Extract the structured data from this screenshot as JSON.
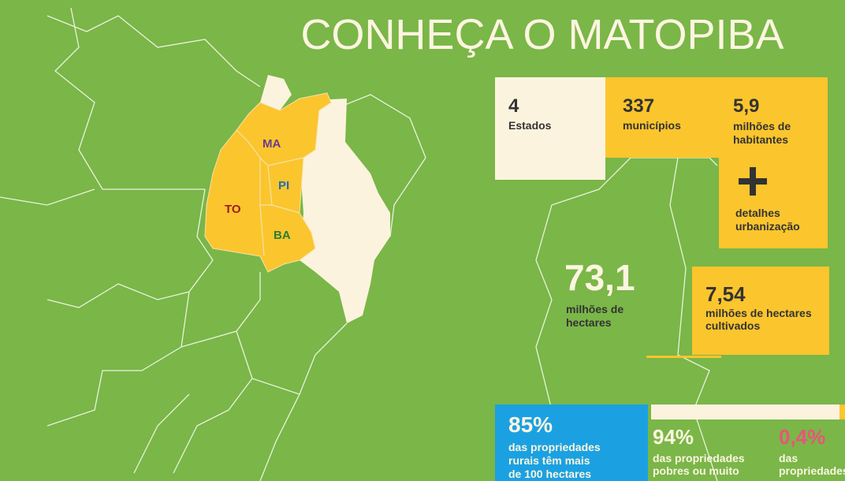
{
  "title": "CONHEÇA O MATOPIBA",
  "map": {
    "states": [
      "MA",
      "PI",
      "TO",
      "BA"
    ]
  },
  "stats": [
    {
      "value": "4",
      "lines": [
        "Estados"
      ]
    },
    {
      "value": "337",
      "lines": [
        "municípios"
      ]
    },
    {
      "value": "5,9",
      "lines": [
        "milhões de",
        "habitantes"
      ]
    },
    {
      "lines": [
        "detalhes",
        "urbanização"
      ]
    },
    {
      "value": "73,1",
      "lines": [
        "milhões de",
        "hectares"
      ]
    },
    {
      "value": "7,54",
      "lines": [
        "milhões de hectares",
        "cultivados"
      ]
    },
    {
      "value": "85%",
      "lines": [
        "das propriedades",
        "rurais têm mais",
        "de 100 hectares"
      ]
    },
    {
      "value": "94%",
      "lines": [
        "das propriedades",
        "pobres ou muito"
      ]
    },
    {
      "value": "0,4%",
      "lines": [
        "das",
        "propriedades"
      ]
    }
  ]
}
